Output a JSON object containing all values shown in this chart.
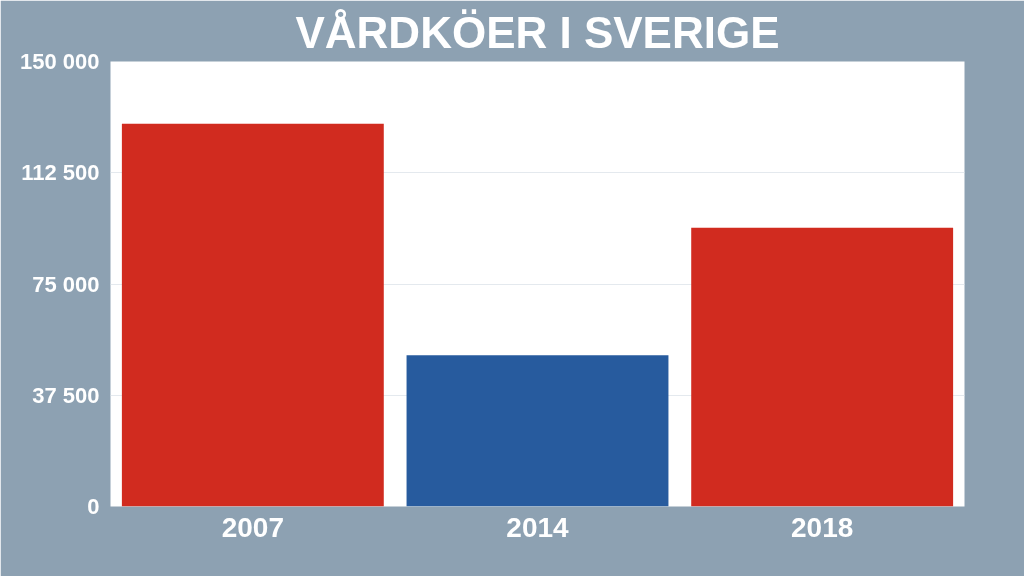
{
  "chart_data": {
    "type": "bar",
    "title": "VÅRDKÖER I SVERIGE",
    "categories": [
      "2007",
      "2014",
      "2018"
    ],
    "values": [
      129000,
      51000,
      94000
    ],
    "colors": [
      "#d12b1f",
      "#275b9e",
      "#d12b1f"
    ],
    "ylim": [
      0,
      150000
    ],
    "yticks": [
      {
        "value": 0,
        "label": "0"
      },
      {
        "value": 37500,
        "label": "37 500"
      },
      {
        "value": 75000,
        "label": "75 000"
      },
      {
        "value": 112500,
        "label": "112 500"
      },
      {
        "value": 150000,
        "label": "150 000"
      }
    ],
    "grid": "y"
  }
}
